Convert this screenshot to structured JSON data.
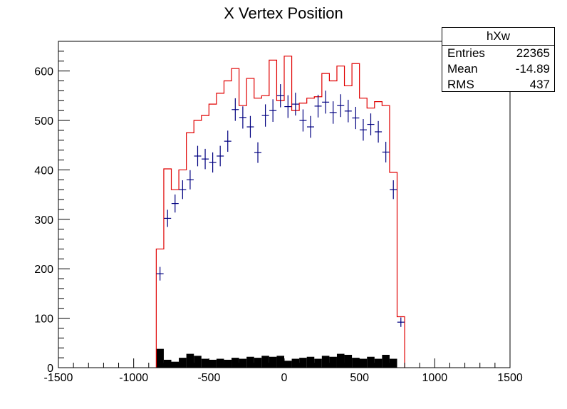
{
  "chart_data": {
    "type": "histogram",
    "title": "X Vertex Position",
    "xlabel": "",
    "ylabel": "",
    "xlim": [
      -1500,
      1500
    ],
    "ylim": [
      0,
      660
    ],
    "grid": false,
    "x_ticks": [
      -1500,
      -1000,
      -500,
      0,
      500,
      1000,
      1500
    ],
    "y_ticks": [
      0,
      100,
      200,
      300,
      400,
      500,
      600
    ],
    "bin_edges": [
      -850,
      -800,
      -750,
      -700,
      -650,
      -600,
      -550,
      -500,
      -450,
      -400,
      -350,
      -300,
      -250,
      -200,
      -150,
      -100,
      -50,
      0,
      50,
      100,
      150,
      200,
      250,
      300,
      350,
      400,
      450,
      500,
      550,
      600,
      650,
      700,
      750,
      800
    ],
    "series": [
      {
        "style": "step-line",
        "color": "#e00000",
        "values": [
          240,
          402,
          360,
          400,
          475,
          500,
          510,
          533,
          555,
          580,
          605,
          530,
          585,
          545,
          550,
          622,
          540,
          630,
          520,
          535,
          545,
          548,
          595,
          580,
          610,
          570,
          615,
          545,
          525,
          538,
          530,
          395,
          103
        ]
      },
      {
        "style": "error-markers",
        "color": "#000080",
        "values": [
          190,
          302,
          332,
          360,
          380,
          428,
          422,
          415,
          428,
          458,
          522,
          506,
          487,
          435,
          510,
          520,
          550,
          528,
          533,
          500,
          487,
          529,
          537,
          516,
          530,
          519,
          505,
          481,
          492,
          477,
          436,
          360,
          92
        ]
      },
      {
        "style": "filled-bars",
        "color": "#000000",
        "values": [
          38,
          16,
          12,
          20,
          28,
          24,
          18,
          16,
          18,
          16,
          20,
          18,
          22,
          20,
          24,
          22,
          24,
          14,
          18,
          20,
          22,
          18,
          24,
          22,
          28,
          26,
          20,
          18,
          22,
          18,
          26,
          18,
          0
        ]
      }
    ]
  },
  "stats_box": {
    "name": "hXw",
    "rows": [
      {
        "label": "Entries",
        "value": "22365"
      },
      {
        "label": "Mean",
        "value": "-14.89"
      },
      {
        "label": "RMS",
        "value": "437"
      }
    ]
  }
}
